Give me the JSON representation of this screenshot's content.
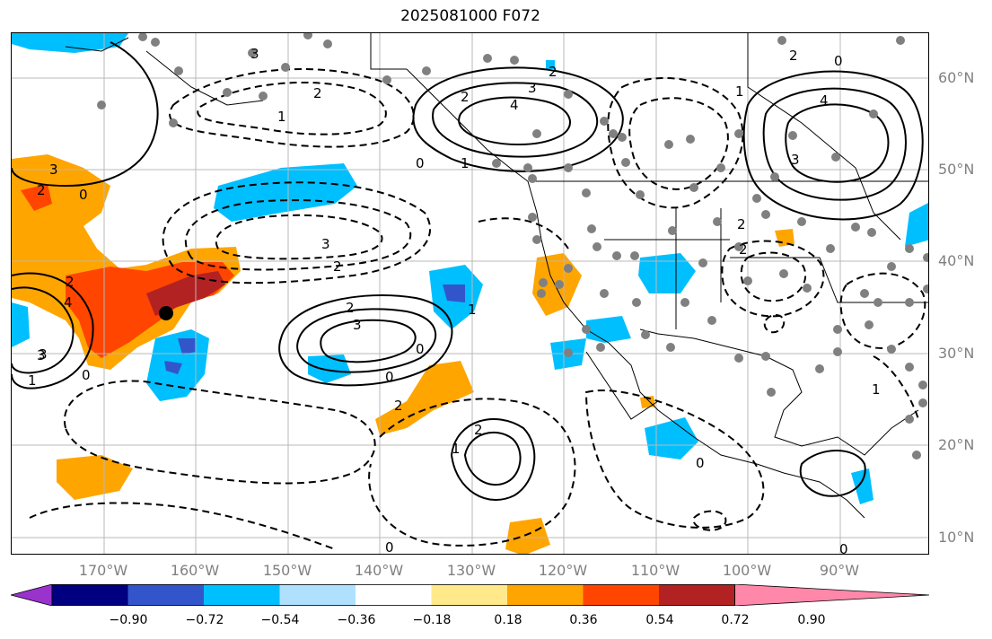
{
  "title": "2025081000 F072",
  "lat_labels": [
    "60°N",
    "50°N",
    "40°N",
    "30°N",
    "20°N",
    "10°N"
  ],
  "lon_labels": [
    "170°W",
    "160°W",
    "150°W",
    "140°W",
    "130°W",
    "120°W",
    "110°W",
    "100°W",
    "90°W"
  ],
  "colorbar": {
    "colors": [
      "#9933cc",
      "#000080",
      "#3355cc",
      "#00bfff",
      "#afe1ff",
      "#ffffff",
      "#ffe98a",
      "#ffa500",
      "#ff4500",
      "#b22222",
      "#ff88aa"
    ],
    "tick_labels": [
      "−0.90",
      "−0.72",
      "−0.54",
      "−0.36",
      "−0.18",
      "0.18",
      "0.36",
      "0.54",
      "0.72",
      "0.90"
    ]
  },
  "contour_labels": [
    {
      "text": "3",
      "id": "c1"
    },
    {
      "text": "2",
      "id": "c2"
    },
    {
      "text": "0",
      "id": "c3"
    },
    {
      "text": "3",
      "id": "c4"
    },
    {
      "text": "2",
      "id": "c5"
    },
    {
      "text": "1",
      "id": "c6"
    },
    {
      "text": "3",
      "id": "c7"
    },
    {
      "text": "2",
      "id": "c8"
    },
    {
      "text": "4",
      "id": "c9"
    },
    {
      "text": "3",
      "id": "c10"
    },
    {
      "text": "2",
      "id": "c11"
    },
    {
      "text": "1",
      "id": "c12"
    },
    {
      "text": "0",
      "id": "c13"
    },
    {
      "text": "2",
      "id": "c14"
    },
    {
      "text": "3",
      "id": "c15"
    },
    {
      "text": "2",
      "id": "c16"
    },
    {
      "text": "3",
      "id": "c17"
    },
    {
      "text": "1",
      "id": "c18"
    },
    {
      "text": "2",
      "id": "c19"
    },
    {
      "text": "0",
      "id": "c20"
    },
    {
      "text": "1",
      "id": "c21"
    },
    {
      "text": "2",
      "id": "c22"
    },
    {
      "text": "1",
      "id": "c23"
    },
    {
      "text": "0",
      "id": "c24"
    },
    {
      "text": "0",
      "id": "c25"
    },
    {
      "text": "0",
      "id": "c26"
    },
    {
      "text": "2",
      "id": "c27"
    },
    {
      "text": "4",
      "id": "c28"
    },
    {
      "text": "3",
      "id": "c29"
    },
    {
      "text": "2",
      "id": "c30"
    },
    {
      "text": "0",
      "id": "c31"
    },
    {
      "text": "1",
      "id": "c32"
    },
    {
      "text": "2",
      "id": "c33"
    },
    {
      "text": "0",
      "id": "c34"
    },
    {
      "text": "2",
      "id": "c35"
    },
    {
      "text": "4",
      "id": "c36"
    },
    {
      "text": "3",
      "id": "c37"
    },
    {
      "text": "1",
      "id": "c38"
    },
    {
      "text": "0",
      "id": "c39"
    }
  ]
}
